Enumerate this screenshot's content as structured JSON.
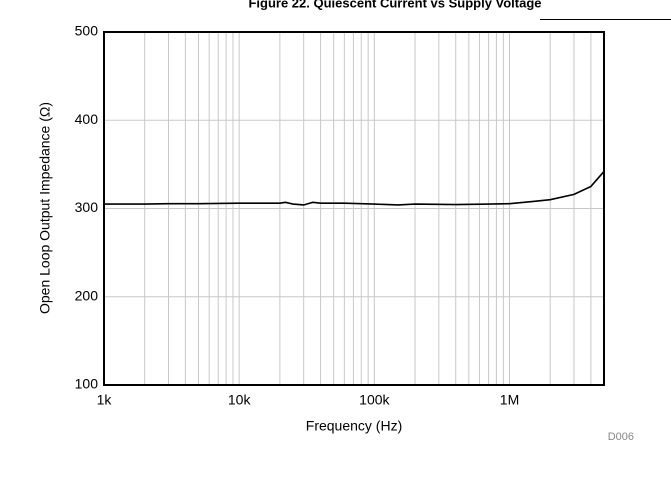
{
  "chart_data": {
    "type": "line",
    "title": "Figure 22. Quiescent Current vs Supply Voltage",
    "xlabel": "Frequency (Hz)",
    "ylabel": "Open Loop Output Impedance (Ω)",
    "annotation": "D006",
    "xscale": "log",
    "x": [
      1000,
      2000,
      3000,
      5000,
      10000,
      20000,
      22000,
      25000,
      30000,
      35000,
      40000,
      60000,
      100000,
      150000,
      200000,
      400000,
      700000,
      1000000,
      1500000,
      2000000,
      3000000,
      4000000,
      5000000
    ],
    "values": [
      305,
      305,
      305.5,
      305.5,
      306,
      306,
      307,
      305,
      304,
      307,
      306,
      306,
      305,
      304,
      305,
      304.5,
      305,
      305.5,
      308,
      310,
      316,
      325,
      342
    ],
    "color": "#000000",
    "xlim": [
      1000,
      5000000
    ],
    "xticks": [
      {
        "value": 1000,
        "label": "1k"
      },
      {
        "value": 10000,
        "label": "10k"
      },
      {
        "value": 100000,
        "label": "100k"
      },
      {
        "value": 1000000,
        "label": "1M"
      }
    ],
    "ylim": [
      100,
      500
    ],
    "yticks": [
      100,
      200,
      300,
      400,
      500
    ],
    "grid": true
  }
}
